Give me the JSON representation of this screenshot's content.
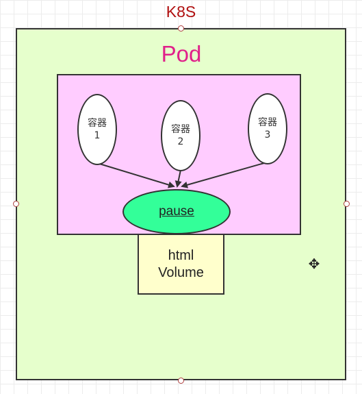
{
  "diagram": {
    "cluster_label": "K8S",
    "pod_label": "Pod",
    "containers": [
      {
        "name": "容器",
        "number": "1"
      },
      {
        "name": "容器",
        "number": "2"
      },
      {
        "name": "容器",
        "number": "3"
      }
    ],
    "pause_label": "pause",
    "volume": {
      "line1": "html",
      "line2": "Volume"
    },
    "edges": [
      {
        "from": "容器 1",
        "to": "pause"
      },
      {
        "from": "容器 2",
        "to": "pause"
      },
      {
        "from": "容器 3",
        "to": "pause"
      }
    ]
  },
  "colors": {
    "cluster_fill": "#e6ffcc",
    "cluster_title": "#b01010",
    "pod_fill": "#ffccff",
    "pod_title": "#e0208a",
    "pause_fill": "#33ff99",
    "volume_fill": "#ffffcc"
  },
  "icons": {
    "cursor": "move-cursor-icon"
  }
}
